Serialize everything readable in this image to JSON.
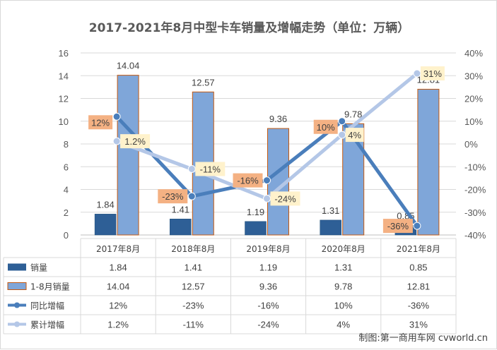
{
  "title": "2017-2021年8月中型卡车销量及增幅走势（单位：万辆）",
  "credit": "制图:第一商用车网 cvworld.cn",
  "chart_data": {
    "type": "bar",
    "categories": [
      "2017年8月",
      "2018年8月",
      "2019年8月",
      "2020年8月",
      "2021年8月"
    ],
    "y_left": {
      "min": 0,
      "max": 16,
      "ticks": [
        "0",
        "2",
        "4",
        "6",
        "8",
        "10",
        "12",
        "14",
        "16"
      ]
    },
    "y_right": {
      "min": -40,
      "max": 40,
      "ticks": [
        "-40%",
        "-30%",
        "-20%",
        "-10%",
        "0%",
        "10%",
        "20%",
        "30%",
        "40%"
      ]
    },
    "gridlines": true,
    "legend": "data-table",
    "series": [
      {
        "name": "销量",
        "kind": "bar",
        "axis": "left",
        "color": "#2e5f96",
        "values": [
          1.84,
          1.41,
          1.19,
          1.31,
          0.85
        ],
        "labels": [
          "1.84",
          "1.41",
          "1.19",
          "1.31",
          "0.85"
        ]
      },
      {
        "name": "1-8月销量",
        "kind": "bar",
        "axis": "left",
        "color": "#7fa6d9",
        "border": "#c55a11",
        "values": [
          14.04,
          12.57,
          9.36,
          9.78,
          12.81
        ],
        "labels": [
          "14.04",
          "12.57",
          "9.36",
          "9.78",
          "12.81"
        ]
      },
      {
        "name": "同比增幅",
        "kind": "line",
        "axis": "right",
        "color": "#4a7ebb",
        "badge_color": "#f4b183",
        "values": [
          12,
          -23,
          -16,
          10,
          -36
        ],
        "labels": [
          "12%",
          "-23%",
          "-16%",
          "10%",
          "-36%"
        ]
      },
      {
        "name": "累计增幅",
        "kind": "line",
        "axis": "right",
        "color": "#b4c7e7",
        "badge_color": "#fff2cc",
        "values": [
          1.2,
          -11,
          -24,
          4,
          31
        ],
        "labels": [
          "1.2%",
          "-11%",
          "-24%",
          "4%",
          "31%"
        ]
      }
    ]
  }
}
